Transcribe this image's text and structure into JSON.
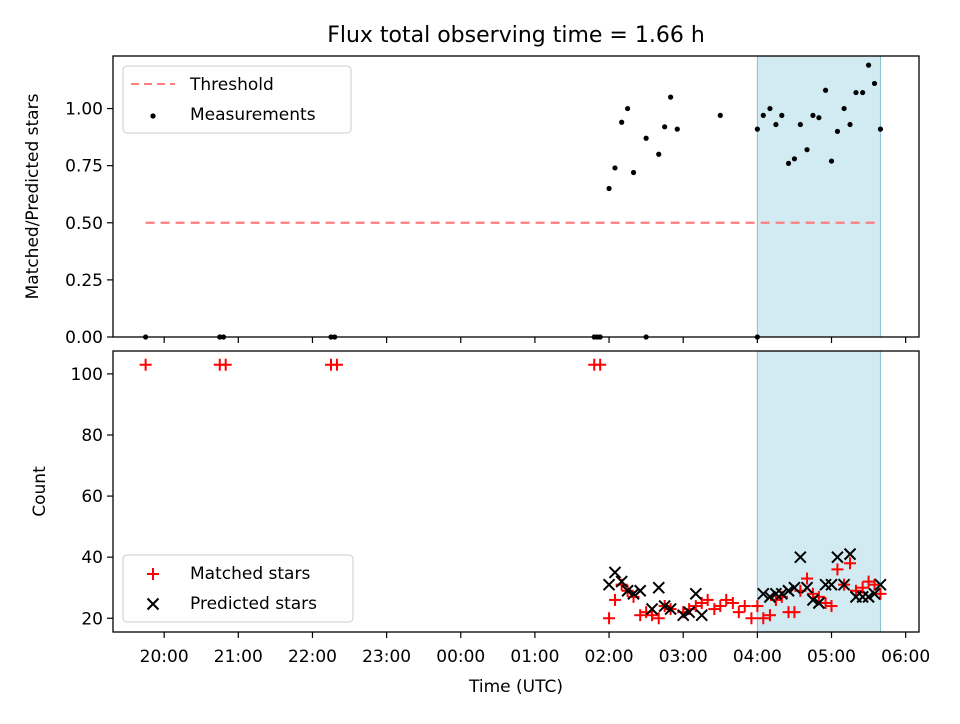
{
  "title": "Flux total observing time = 1.66 h",
  "colors": {
    "threshold": "#ff7f7f",
    "measurement": "#000000",
    "matched": "#ff0000",
    "predicted": "#000000",
    "window_fill": "#add8e6",
    "window_edge": "#87c0d0"
  },
  "chart_data": [
    {
      "type": "scatter",
      "panel": "top",
      "title": "Flux total observing time = 1.66 h",
      "ylabel": "Matched/Predicted stars",
      "xlabel": "",
      "x_unit": "hours since 19:00 UTC",
      "xlim": [
        0.31,
        11.18
      ],
      "ylim": [
        0.0,
        1.23
      ],
      "yticks": [
        0.0,
        0.25,
        0.5,
        0.75,
        1.0
      ],
      "ytick_labels": [
        "0.00",
        "0.25",
        "0.50",
        "0.75",
        "1.00"
      ],
      "legend_position": "top-left",
      "shaded_window": {
        "x_start": 9.0,
        "x_end": 10.66
      },
      "threshold": {
        "name": "Threshold",
        "value": 0.5,
        "x_start": 0.75,
        "x_end": 10.66
      },
      "measurements": {
        "name": "Measurements",
        "x": [
          0.75,
          1.75,
          1.8,
          3.25,
          3.3,
          6.8,
          6.84,
          6.88,
          7.0,
          7.08,
          7.17,
          7.25,
          7.33,
          7.5,
          7.67,
          7.75,
          7.83,
          7.92,
          8.5,
          9.0,
          9.08,
          9.17,
          9.25,
          9.33,
          9.42,
          9.5,
          9.58,
          9.67,
          9.75,
          9.83,
          9.92,
          10.0,
          10.08,
          10.17,
          10.25,
          10.33,
          10.42,
          10.5,
          10.58,
          10.66,
          7.5,
          9.0
        ],
        "y": [
          0.0,
          0.0,
          0.0,
          0.0,
          0.0,
          0.0,
          0.0,
          0.0,
          0.65,
          0.74,
          0.94,
          1.0,
          0.72,
          0.87,
          0.8,
          0.92,
          1.05,
          0.91,
          0.97,
          0.91,
          0.97,
          1.0,
          0.93,
          0.97,
          0.76,
          0.78,
          0.93,
          0.82,
          0.97,
          0.96,
          1.08,
          0.77,
          0.9,
          1.0,
          0.93,
          1.07,
          1.07,
          1.19,
          1.11,
          0.91,
          0.0,
          0.0
        ]
      }
    },
    {
      "type": "scatter",
      "panel": "bottom",
      "xlabel": "Time (UTC)",
      "ylabel": "Count",
      "x_unit": "hours since 19:00 UTC",
      "xlim": [
        0.31,
        11.18
      ],
      "ylim": [
        15.5,
        107.5
      ],
      "yticks": [
        20,
        40,
        60,
        80,
        100
      ],
      "ytick_labels": [
        "20",
        "40",
        "60",
        "80",
        "100"
      ],
      "xticks": [
        1,
        2,
        3,
        4,
        5,
        6,
        7,
        8,
        9,
        10,
        11
      ],
      "xtick_labels": [
        "20:00",
        "21:00",
        "22:00",
        "23:00",
        "00:00",
        "01:00",
        "02:00",
        "03:00",
        "04:00",
        "05:00",
        "06:00"
      ],
      "legend_position": "bottom-left",
      "shaded_window": {
        "x_start": 9.0,
        "x_end": 10.66
      },
      "series": [
        {
          "name": "Matched stars",
          "marker": "plus",
          "x": [
            0.75,
            1.75,
            1.83,
            3.25,
            3.33,
            6.8,
            6.88,
            7.0,
            7.08,
            7.17,
            7.25,
            7.33,
            7.42,
            7.5,
            7.58,
            7.67,
            7.75,
            7.83,
            8.0,
            8.08,
            8.17,
            8.25,
            8.33,
            8.42,
            8.5,
            8.58,
            8.67,
            8.75,
            8.83,
            8.92,
            9.0,
            9.08,
            9.17,
            9.25,
            9.33,
            9.42,
            9.5,
            9.58,
            9.67,
            9.75,
            9.83,
            9.92,
            10.0,
            10.08,
            10.17,
            10.25,
            10.33,
            10.42,
            10.5,
            10.58,
            10.66
          ],
          "y": [
            103,
            103,
            103,
            103,
            103,
            103,
            103,
            20,
            26,
            31,
            29,
            27,
            21,
            22,
            21,
            20,
            24,
            23,
            22,
            23,
            24,
            25,
            26,
            23,
            24,
            26,
            25,
            22,
            24,
            20,
            24,
            20,
            21,
            26,
            27,
            22,
            22,
            29,
            33,
            28,
            27,
            25,
            24,
            36,
            31,
            38,
            29,
            30,
            32,
            31,
            28
          ]
        },
        {
          "name": "Predicted stars",
          "marker": "x",
          "x": [
            7.0,
            7.08,
            7.17,
            7.25,
            7.33,
            7.42,
            7.58,
            7.67,
            7.75,
            7.83,
            8.0,
            8.08,
            8.17,
            8.25,
            9.08,
            9.17,
            9.25,
            9.33,
            9.42,
            9.5,
            9.58,
            9.67,
            9.75,
            9.83,
            9.92,
            10.0,
            10.08,
            10.17,
            10.25,
            10.33,
            10.42,
            10.5,
            10.58,
            10.66
          ],
          "y": [
            31,
            35,
            32,
            29,
            28,
            29,
            23,
            30,
            24,
            23,
            21,
            22,
            28,
            21,
            28,
            27,
            28,
            28,
            29,
            30,
            40,
            30,
            26,
            25,
            31,
            31,
            40,
            31,
            41,
            27,
            27,
            27,
            28,
            31
          ]
        }
      ]
    }
  ]
}
